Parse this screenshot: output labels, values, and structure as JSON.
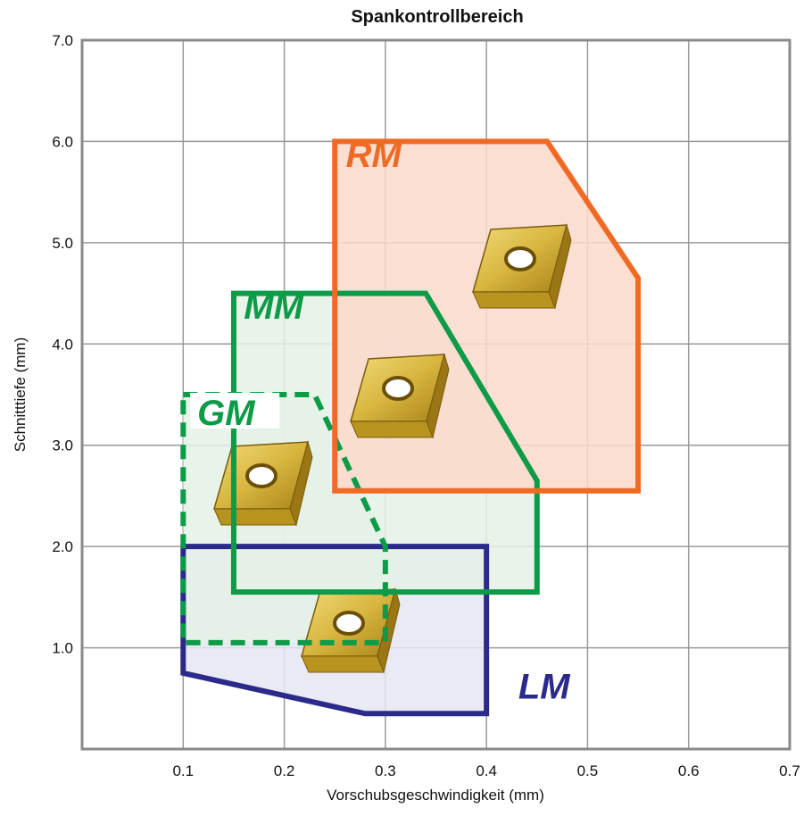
{
  "chart_data": {
    "type": "area",
    "title": "Spankontrollbereich",
    "xlabel": "Vorschubsgeschwindigkeit (mm)",
    "ylabel": "Schnitttiefe (mm)",
    "xlim": [
      0,
      0.7
    ],
    "ylim": [
      0,
      7
    ],
    "x_ticks": [
      "0.1",
      "0.2",
      "0.3",
      "0.4",
      "0.5",
      "0.6",
      "0.7"
    ],
    "y_ticks": [
      "1.0",
      "2.0",
      "3.0",
      "4.0",
      "5.0",
      "6.0",
      "7.0"
    ],
    "grid": true,
    "regions": [
      {
        "name": "LM",
        "color": "#2b2a8a",
        "fill": "#e6e6f3",
        "line_style": "solid",
        "points": [
          [
            0.1,
            2.0
          ],
          [
            0.4,
            2.0
          ],
          [
            0.4,
            0.35
          ],
          [
            0.28,
            0.35
          ],
          [
            0.1,
            0.75
          ]
        ]
      },
      {
        "name": "GM",
        "color": "#0d9b48",
        "fill": "#e4f1e6",
        "line_style": "dashed",
        "points": [
          [
            0.1,
            3.5
          ],
          [
            0.23,
            3.5
          ],
          [
            0.3,
            2.0
          ],
          [
            0.3,
            1.05
          ],
          [
            0.1,
            1.05
          ]
        ]
      },
      {
        "name": "MM",
        "color": "#0d9b48",
        "fill": "#e4f1e6",
        "line_style": "solid",
        "points": [
          [
            0.15,
            4.5
          ],
          [
            0.34,
            4.5
          ],
          [
            0.45,
            2.65
          ],
          [
            0.45,
            1.55
          ],
          [
            0.15,
            1.55
          ]
        ]
      },
      {
        "name": "RM",
        "color": "#f06a24",
        "fill": "#fbd9cb",
        "line_style": "solid",
        "points": [
          [
            0.25,
            6.0
          ],
          [
            0.46,
            6.0
          ],
          [
            0.55,
            4.65
          ],
          [
            0.55,
            2.55
          ],
          [
            0.25,
            2.55
          ]
        ]
      }
    ]
  }
}
